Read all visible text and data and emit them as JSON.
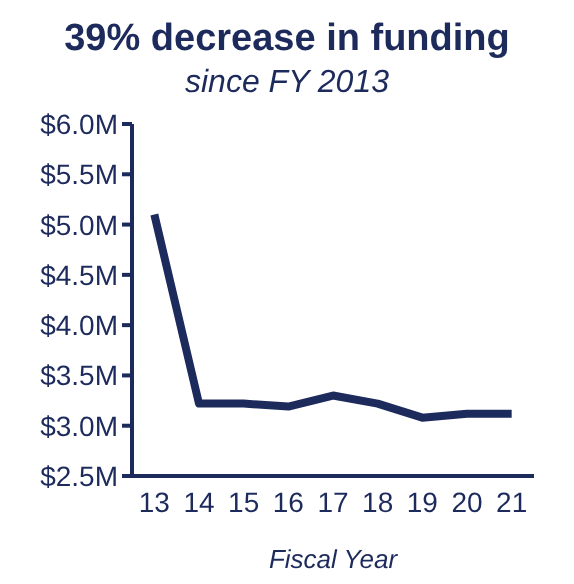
{
  "chart_data": {
    "type": "line",
    "title": "39% decrease in funding",
    "subtitle": "since FY 2013",
    "xlabel": "Fiscal Year",
    "categories": [
      "13",
      "14",
      "15",
      "16",
      "17",
      "18",
      "19",
      "20",
      "21"
    ],
    "series": [
      {
        "color": "#1d2a5c",
        "values": [
          5.1,
          3.22,
          3.22,
          3.19,
          3.3,
          3.22,
          3.08,
          3.12,
          3.12
        ]
      }
    ],
    "ylim": [
      2.5,
      6.0
    ],
    "yticks": [
      {
        "value": 2.5,
        "label": "$2.5M"
      },
      {
        "value": 3.0,
        "label": "$3.0M"
      },
      {
        "value": 3.5,
        "label": "$3.5M"
      },
      {
        "value": 4.0,
        "label": "$4.0M"
      },
      {
        "value": 4.5,
        "label": "$4.5M"
      },
      {
        "value": 5.0,
        "label": "$5.0M"
      },
      {
        "value": 5.5,
        "label": "$5.5M"
      },
      {
        "value": 6.0,
        "label": "$6.0M"
      }
    ],
    "grid": false,
    "legend": false,
    "marker": "none",
    "line_style": "solid"
  }
}
